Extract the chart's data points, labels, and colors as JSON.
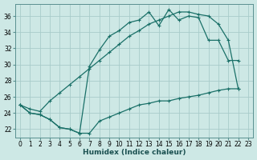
{
  "xlabel": "Humidex (Indice chaleur)",
  "background_color": "#cde8e5",
  "grid_color": "#a8ccca",
  "line_color": "#1a7068",
  "xlim": [
    -0.5,
    23.5
  ],
  "ylim": [
    21.0,
    37.5
  ],
  "xticks": [
    0,
    1,
    2,
    3,
    4,
    5,
    6,
    7,
    8,
    9,
    10,
    11,
    12,
    13,
    14,
    15,
    16,
    17,
    18,
    19,
    20,
    21,
    22,
    23
  ],
  "yticks": [
    22,
    24,
    26,
    28,
    30,
    32,
    34,
    36
  ],
  "line1_x": [
    0,
    1,
    2,
    3,
    4,
    5,
    6,
    7,
    8,
    9,
    10,
    11,
    12,
    13,
    14,
    15,
    16,
    17,
    18,
    19,
    20,
    21,
    22
  ],
  "line1_y": [
    25.0,
    24.0,
    23.8,
    23.2,
    22.2,
    22.0,
    21.5,
    29.8,
    31.8,
    33.5,
    34.2,
    35.2,
    35.5,
    36.5,
    34.8,
    36.8,
    35.5,
    36.0,
    35.8,
    33.0,
    33.0,
    30.5,
    30.5
  ],
  "line2_x": [
    0,
    1,
    2,
    3,
    4,
    5,
    6,
    7,
    8,
    9,
    10,
    11,
    12,
    13,
    14,
    15,
    16,
    17,
    18,
    19,
    20,
    21,
    22
  ],
  "line2_y": [
    25.0,
    24.5,
    24.2,
    25.5,
    26.5,
    27.5,
    28.5,
    29.5,
    30.5,
    31.5,
    32.5,
    33.5,
    34.2,
    35.0,
    35.5,
    36.0,
    36.5,
    36.5,
    36.2,
    36.0,
    35.0,
    33.0,
    27.0
  ],
  "line3_x": [
    0,
    1,
    2,
    3,
    4,
    5,
    6,
    7,
    8,
    9,
    10,
    11,
    12,
    13,
    14,
    15,
    16,
    17,
    18,
    19,
    20,
    21,
    22
  ],
  "line3_y": [
    25.0,
    24.0,
    23.8,
    23.2,
    22.2,
    22.0,
    21.5,
    21.5,
    23.0,
    23.5,
    24.0,
    24.5,
    25.0,
    25.2,
    25.5,
    25.5,
    25.8,
    26.0,
    26.2,
    26.5,
    26.8,
    27.0,
    27.0
  ]
}
